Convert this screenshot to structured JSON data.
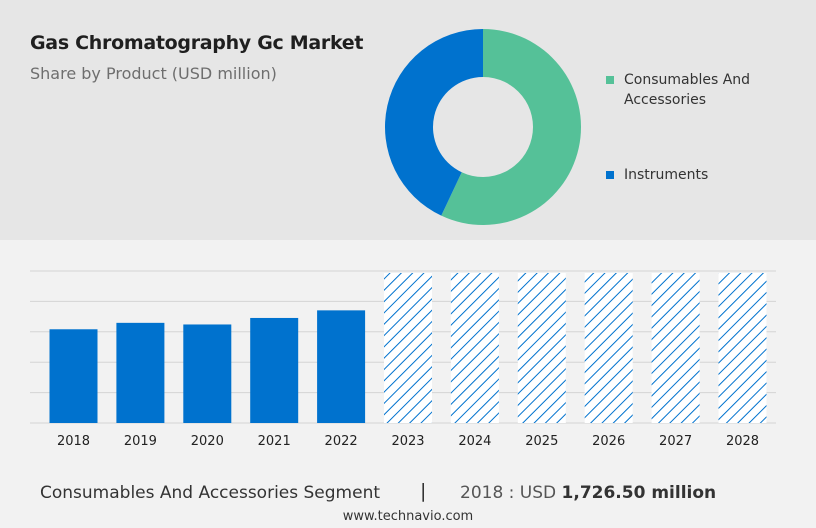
{
  "header": {
    "title": "Gas Chromatography Gc Market",
    "subtitle": "Share by Product (USD million)"
  },
  "legend": [
    {
      "label": "Consumables And Accessories",
      "color": "#55c198"
    },
    {
      "label": "Instruments",
      "color": "#0072ce"
    }
  ],
  "footer": {
    "segment": "Consumables And Accessories Segment",
    "separator": "|",
    "year_label": "2018 : USD",
    "value": "1,726.50 million",
    "url": "www.technavio.com"
  },
  "chart_data": [
    {
      "type": "pie",
      "donut": true,
      "labels": [
        "Consumables And Accessories",
        "Instruments"
      ],
      "values": [
        57,
        43
      ],
      "colors": [
        "#55c198",
        "#0072ce"
      ]
    },
    {
      "type": "bar",
      "categories": [
        "2018",
        "2019",
        "2020",
        "2021",
        "2022",
        "2023",
        "2024",
        "2025",
        "2026",
        "2027",
        "2028"
      ],
      "values": [
        1726.5,
        1845,
        1815,
        1935,
        2075,
        null,
        null,
        null,
        null,
        null,
        null
      ],
      "forecast": [
        "2023",
        "2024",
        "2025",
        "2026",
        "2027",
        "2028"
      ],
      "ylim": [
        0,
        2800
      ],
      "grid": true,
      "color": "#0072ce"
    }
  ]
}
